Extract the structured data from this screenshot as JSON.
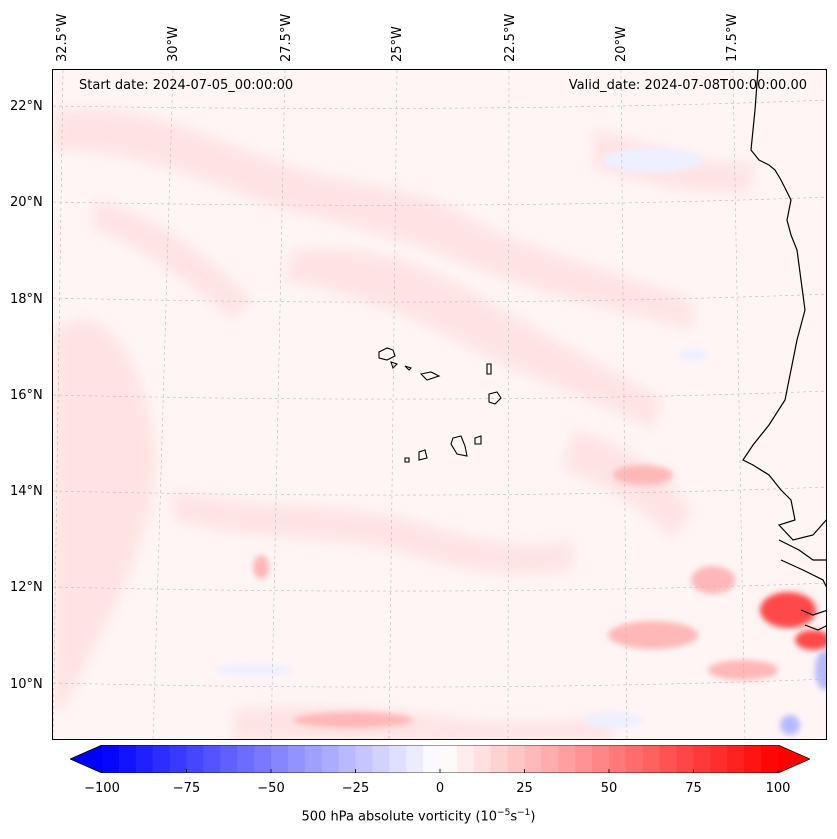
{
  "map": {
    "title_start": "Start date: 2024-07-05_00:00:00",
    "title_valid": "Valid_date: 2024-07-08T00:00:00.00",
    "lon_labels": [
      "32.5°W",
      "30°W",
      "27.5°W",
      "25°W",
      "22.5°W",
      "20°W",
      "17.5°W"
    ],
    "lat_labels": [
      "22°N",
      "20°N",
      "18°N",
      "16°N",
      "14°N",
      "12°N",
      "10°N"
    ],
    "field": "500 hPa absolute vorticity",
    "colors": {
      "coast": "#000000",
      "grid": "#bbbbbb",
      "background": "#fff5f5",
      "pos_low": "#ffe2e2",
      "pos_mid": "#ffb7b7",
      "pos_high": "#ff4a4a",
      "neg_low": "#eef0ff",
      "neg_mid": "#b7b9ff"
    }
  },
  "colorbar": {
    "min": -100,
    "max": 100,
    "tick_labels": [
      "−100",
      "−75",
      "−50",
      "−25",
      "0",
      "25",
      "50",
      "75",
      "100"
    ],
    "tick_values": [
      -100,
      -75,
      -50,
      -25,
      0,
      25,
      50,
      75,
      100
    ],
    "label": "500 hPa absolute vorticity (10",
    "label_exp1": "−5",
    "label_mid": "s",
    "label_exp2": "−1",
    "label_end": ")",
    "low_color": "#0000ff",
    "high_color": "#ff0000"
  }
}
